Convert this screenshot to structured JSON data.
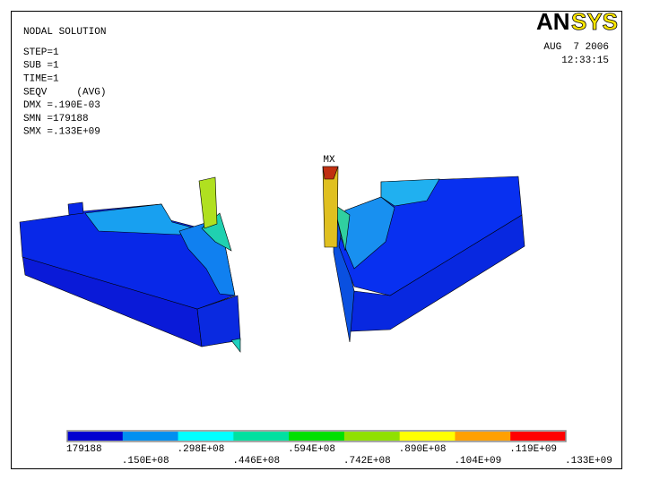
{
  "header": {
    "title": "NODAL SOLUTION",
    "lines": [
      "STEP=1",
      "SUB =1",
      "TIME=1",
      "SEQV     (AVG)",
      "DMX =.190E-03",
      "SMN =179188",
      "SMX =.133E+09"
    ],
    "logo_parts": [
      "AN",
      "SYS"
    ],
    "date": "AUG  7 2006",
    "time": "12:33:15"
  },
  "model": {
    "max_label": "MX"
  },
  "legend": {
    "labels": [
      "179188",
      ".150E+08",
      ".298E+08",
      ".446E+08",
      ".594E+08",
      ".742E+08",
      ".890E+08",
      ".104E+09",
      ".119E+09",
      ".133E+09"
    ],
    "colors": [
      "#0000d0",
      "#0090f0",
      "#00ffff",
      "#00e0a0",
      "#00e000",
      "#90e000",
      "#ffff00",
      "#ffa000",
      "#ff0000"
    ]
  }
}
